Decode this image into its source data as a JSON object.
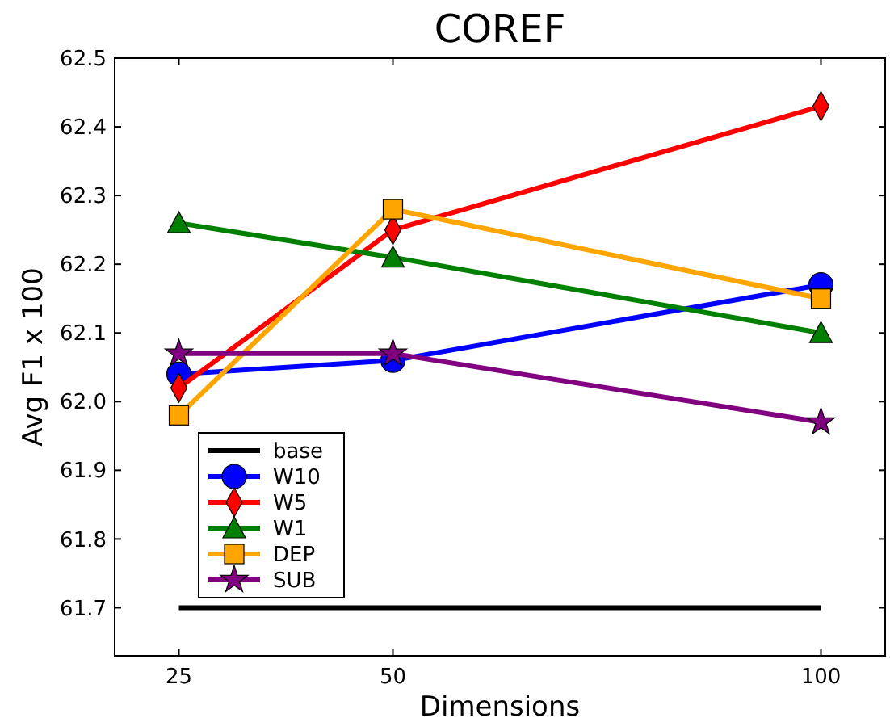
{
  "chart_data": {
    "type": "line",
    "title": "COREF",
    "xlabel": "Dimensions",
    "ylabel": "Avg F1 x 100",
    "x": [
      25,
      50,
      100
    ],
    "xlim": [
      17.5,
      107.5
    ],
    "xticks": [
      25,
      50,
      100
    ],
    "ylim": [
      61.63,
      62.5
    ],
    "yticks": [
      {
        "value": 62.5,
        "label": "62.5"
      },
      {
        "value": 62.4,
        "label": "62.4"
      },
      {
        "value": 62.3,
        "label": "62.3"
      },
      {
        "value": 62.2,
        "label": "62.2"
      },
      {
        "value": 62.1,
        "label": "62.1"
      },
      {
        "value": 62.0,
        "label": "62.0"
      },
      {
        "value": 61.9,
        "label": "61.9"
      },
      {
        "value": 61.8,
        "label": "61.8"
      },
      {
        "value": 61.7,
        "label": "61.7"
      }
    ],
    "legend": "bottom left",
    "grid": false,
    "series": [
      {
        "name": "base",
        "color": "#000000",
        "values": [
          61.7,
          61.7,
          61.7
        ],
        "marker": "none"
      },
      {
        "name": "W10",
        "color": "#0000ff",
        "values": [
          62.04,
          62.06,
          62.17
        ],
        "marker": "circle"
      },
      {
        "name": "W5",
        "color": "#ff0000",
        "values": [
          62.02,
          62.25,
          62.43
        ],
        "marker": "diamond"
      },
      {
        "name": "W1",
        "color": "#008000",
        "values": [
          62.26,
          62.21,
          62.1
        ],
        "marker": "triangle"
      },
      {
        "name": "DEP",
        "color": "#ffa500",
        "values": [
          61.98,
          62.28,
          62.15
        ],
        "marker": "square"
      },
      {
        "name": "SUB",
        "color": "#800080",
        "values": [
          62.07,
          62.07,
          61.97
        ],
        "marker": "star"
      }
    ]
  }
}
